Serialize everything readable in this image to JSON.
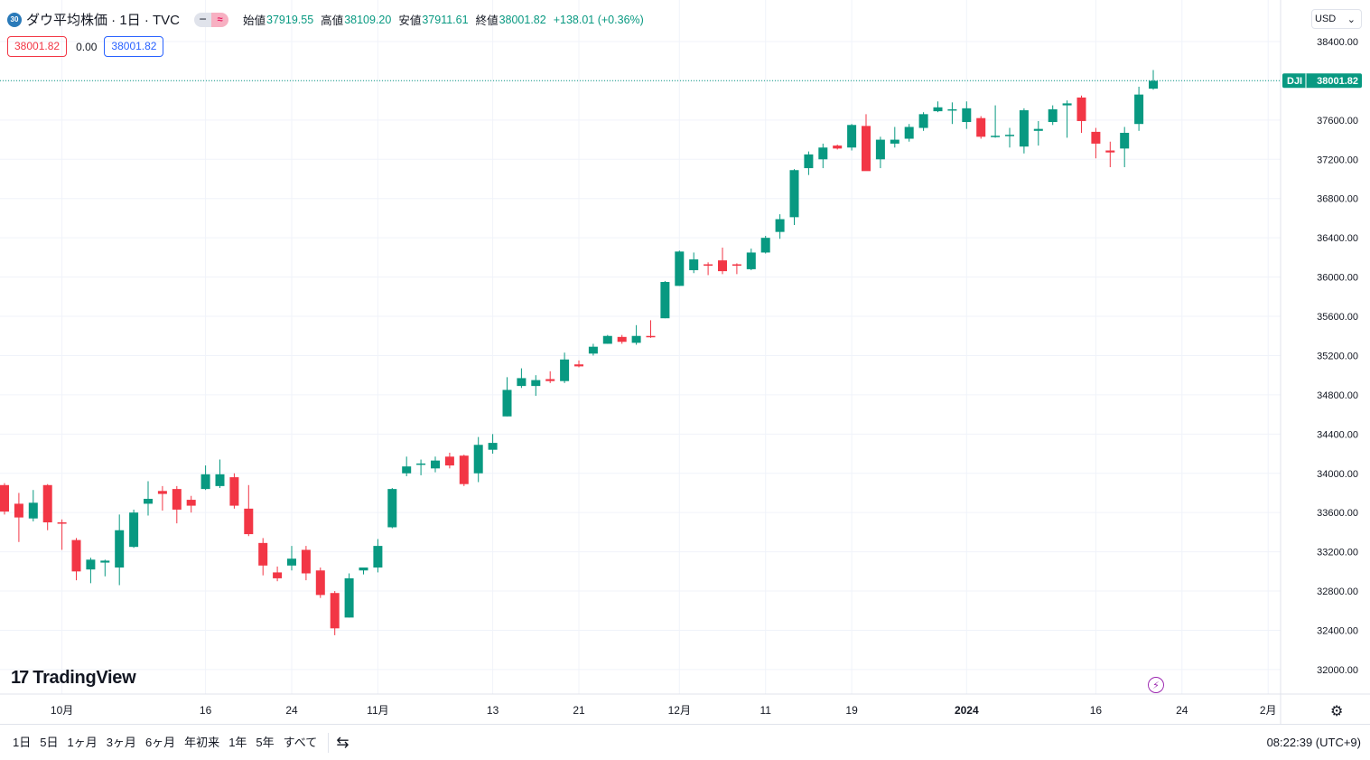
{
  "legend": {
    "badge": "30",
    "title": "ダウ平均株価 · 1日 · TVC",
    "open_label": "始値",
    "open": "37919.55",
    "high_label": "高値",
    "high": "38109.20",
    "low_label": "安値",
    "low": "37911.61",
    "close_label": "終値",
    "close": "38001.82",
    "change": "+138.01 (+0.36%)"
  },
  "order_boxes": {
    "sell": "38001.82",
    "spread": "0.00",
    "buy": "38001.82"
  },
  "currency": {
    "label": "USD",
    "chevron": "⌄"
  },
  "logo": {
    "mark": "17",
    "text": "TradingView"
  },
  "price_tag": {
    "symbol": "DJI",
    "value": "38001.82"
  },
  "colors": {
    "up": "#089981",
    "down": "#f23645",
    "grid": "#f0f3fa",
    "last_line": "#089981"
  },
  "icons": {
    "bolt": "lightning-icon",
    "gear": "settings-icon",
    "calendar": "calendar-range-icon"
  },
  "bottom_bar": {
    "ranges": [
      "1日",
      "5日",
      "1ヶ月",
      "3ヶ月",
      "6ヶ月",
      "年初来",
      "1年",
      "5年",
      "すべて"
    ],
    "clock": "08:22:39 (UTC+9)"
  },
  "chart_data": {
    "type": "candlestick",
    "title": "ダウ平均株価 · 1日 · TVC",
    "ylim": [
      31800,
      38800
    ],
    "y_ticks": [
      32000,
      32400,
      32800,
      33200,
      33600,
      34000,
      34400,
      34800,
      35200,
      35600,
      36000,
      36400,
      36800,
      37200,
      37600,
      38400
    ],
    "y_tick_labels": [
      "32000.00",
      "32400.00",
      "32800.00",
      "33200.00",
      "33600.00",
      "34000.00",
      "34400.00",
      "34800.00",
      "35200.00",
      "35600.00",
      "36000.00",
      "36400.00",
      "36800.00",
      "37200.00",
      "37600.00",
      "38400.00"
    ],
    "x_ticks": [
      {
        "label": "10月",
        "index": 4
      },
      {
        "label": "16",
        "index": 14
      },
      {
        "label": "24",
        "index": 20
      },
      {
        "label": "11月",
        "index": 26
      },
      {
        "label": "13",
        "index": 34
      },
      {
        "label": "21",
        "index": 40
      },
      {
        "label": "12月",
        "index": 47
      },
      {
        "label": "11",
        "index": 53
      },
      {
        "label": "19",
        "index": 59
      },
      {
        "label": "2024",
        "index": 67
      },
      {
        "label": "16",
        "index": 76
      },
      {
        "label": "24",
        "index": 82
      },
      {
        "label": "2月",
        "index": 88
      }
    ],
    "last_price": 38001.82,
    "candles": [
      {
        "o": 33880,
        "h": 33900,
        "l": 33580,
        "c": 33610
      },
      {
        "o": 33690,
        "h": 33800,
        "l": 33300,
        "c": 33550
      },
      {
        "o": 33540,
        "h": 33830,
        "l": 33510,
        "c": 33700
      },
      {
        "o": 33880,
        "h": 33890,
        "l": 33420,
        "c": 33500
      },
      {
        "o": 33500,
        "h": 33530,
        "l": 33220,
        "c": 33490
      },
      {
        "o": 33320,
        "h": 33340,
        "l": 32910,
        "c": 33000
      },
      {
        "o": 33020,
        "h": 33140,
        "l": 32880,
        "c": 33120
      },
      {
        "o": 33090,
        "h": 33120,
        "l": 32950,
        "c": 33110
      },
      {
        "o": 33040,
        "h": 33580,
        "l": 32860,
        "c": 33420
      },
      {
        "o": 33250,
        "h": 33630,
        "l": 33240,
        "c": 33600
      },
      {
        "o": 33690,
        "h": 33920,
        "l": 33570,
        "c": 33740
      },
      {
        "o": 33820,
        "h": 33870,
        "l": 33620,
        "c": 33790
      },
      {
        "o": 33840,
        "h": 33870,
        "l": 33490,
        "c": 33630
      },
      {
        "o": 33730,
        "h": 33770,
        "l": 33600,
        "c": 33670
      },
      {
        "o": 33840,
        "h": 34080,
        "l": 33830,
        "c": 33990
      },
      {
        "o": 33870,
        "h": 34140,
        "l": 33850,
        "c": 33990
      },
      {
        "o": 33960,
        "h": 34000,
        "l": 33640,
        "c": 33670
      },
      {
        "o": 33640,
        "h": 33880,
        "l": 33360,
        "c": 33380
      },
      {
        "o": 33290,
        "h": 33340,
        "l": 32960,
        "c": 33060
      },
      {
        "o": 32990,
        "h": 33050,
        "l": 32900,
        "c": 32930
      },
      {
        "o": 33060,
        "h": 33260,
        "l": 33010,
        "c": 33130
      },
      {
        "o": 33220,
        "h": 33260,
        "l": 32910,
        "c": 32980
      },
      {
        "o": 33010,
        "h": 33040,
        "l": 32730,
        "c": 32760
      },
      {
        "o": 32780,
        "h": 32800,
        "l": 32350,
        "c": 32420
      },
      {
        "o": 32530,
        "h": 32980,
        "l": 32530,
        "c": 32930
      },
      {
        "o": 33010,
        "h": 33040,
        "l": 32970,
        "c": 33040
      },
      {
        "o": 33040,
        "h": 33330,
        "l": 32990,
        "c": 33260
      },
      {
        "o": 33450,
        "h": 33850,
        "l": 33440,
        "c": 33840
      },
      {
        "o": 34000,
        "h": 34170,
        "l": 33970,
        "c": 34070
      },
      {
        "o": 34090,
        "h": 34140,
        "l": 33980,
        "c": 34100
      },
      {
        "o": 34050,
        "h": 34170,
        "l": 34010,
        "c": 34130
      },
      {
        "o": 34170,
        "h": 34210,
        "l": 34050,
        "c": 34080
      },
      {
        "o": 34180,
        "h": 34190,
        "l": 33870,
        "c": 33890
      },
      {
        "o": 34000,
        "h": 34370,
        "l": 33910,
        "c": 34290
      },
      {
        "o": 34240,
        "h": 34400,
        "l": 34200,
        "c": 34310
      },
      {
        "o": 34580,
        "h": 34980,
        "l": 34580,
        "c": 34850
      },
      {
        "o": 34890,
        "h": 35070,
        "l": 34870,
        "c": 34970
      },
      {
        "o": 34890,
        "h": 35000,
        "l": 34790,
        "c": 34950
      },
      {
        "o": 34960,
        "h": 35040,
        "l": 34920,
        "c": 34940
      },
      {
        "o": 34940,
        "h": 35230,
        "l": 34920,
        "c": 35160
      },
      {
        "o": 35110,
        "h": 35150,
        "l": 35080,
        "c": 35090
      },
      {
        "o": 35220,
        "h": 35320,
        "l": 35200,
        "c": 35290
      },
      {
        "o": 35320,
        "h": 35410,
        "l": 35320,
        "c": 35400
      },
      {
        "o": 35390,
        "h": 35410,
        "l": 35320,
        "c": 35340
      },
      {
        "o": 35330,
        "h": 35510,
        "l": 35310,
        "c": 35400
      },
      {
        "o": 35400,
        "h": 35560,
        "l": 35380,
        "c": 35390
      },
      {
        "o": 35580,
        "h": 35960,
        "l": 35580,
        "c": 35950
      },
      {
        "o": 35910,
        "h": 36270,
        "l": 35910,
        "c": 36260
      },
      {
        "o": 36070,
        "h": 36250,
        "l": 36040,
        "c": 36180
      },
      {
        "o": 36130,
        "h": 36150,
        "l": 36020,
        "c": 36120
      },
      {
        "o": 36170,
        "h": 36300,
        "l": 36030,
        "c": 36060
      },
      {
        "o": 36130,
        "h": 36140,
        "l": 36030,
        "c": 36120
      },
      {
        "o": 36080,
        "h": 36290,
        "l": 36070,
        "c": 36250
      },
      {
        "o": 36250,
        "h": 36420,
        "l": 36240,
        "c": 36400
      },
      {
        "o": 36460,
        "h": 36640,
        "l": 36390,
        "c": 36590
      },
      {
        "o": 36610,
        "h": 37100,
        "l": 36530,
        "c": 37090
      },
      {
        "o": 37110,
        "h": 37280,
        "l": 37040,
        "c": 37250
      },
      {
        "o": 37200,
        "h": 37360,
        "l": 37110,
        "c": 37320
      },
      {
        "o": 37340,
        "h": 37350,
        "l": 37300,
        "c": 37310
      },
      {
        "o": 37320,
        "h": 37560,
        "l": 37290,
        "c": 37550
      },
      {
        "o": 37540,
        "h": 37660,
        "l": 37100,
        "c": 37080
      },
      {
        "o": 37200,
        "h": 37430,
        "l": 37110,
        "c": 37400
      },
      {
        "o": 37360,
        "h": 37530,
        "l": 37320,
        "c": 37400
      },
      {
        "o": 37410,
        "h": 37560,
        "l": 37380,
        "c": 37530
      },
      {
        "o": 37520,
        "h": 37680,
        "l": 37490,
        "c": 37660
      },
      {
        "o": 37690,
        "h": 37790,
        "l": 37680,
        "c": 37730
      },
      {
        "o": 37700,
        "h": 37780,
        "l": 37560,
        "c": 37710
      },
      {
        "o": 37580,
        "h": 37790,
        "l": 37510,
        "c": 37720
      },
      {
        "o": 37620,
        "h": 37640,
        "l": 37410,
        "c": 37430
      },
      {
        "o": 37430,
        "h": 37750,
        "l": 37420,
        "c": 37440
      },
      {
        "o": 37440,
        "h": 37520,
        "l": 37320,
        "c": 37450
      },
      {
        "o": 37330,
        "h": 37720,
        "l": 37260,
        "c": 37700
      },
      {
        "o": 37490,
        "h": 37590,
        "l": 37340,
        "c": 37510
      },
      {
        "o": 37580,
        "h": 37750,
        "l": 37550,
        "c": 37710
      },
      {
        "o": 37750,
        "h": 37800,
        "l": 37420,
        "c": 37770
      },
      {
        "o": 37830,
        "h": 37850,
        "l": 37470,
        "c": 37590
      },
      {
        "o": 37480,
        "h": 37520,
        "l": 37210,
        "c": 37360
      },
      {
        "o": 37290,
        "h": 37380,
        "l": 37120,
        "c": 37270
      },
      {
        "o": 37310,
        "h": 37530,
        "l": 37120,
        "c": 37470
      },
      {
        "o": 37560,
        "h": 37940,
        "l": 37490,
        "c": 37860
      },
      {
        "o": 37920,
        "h": 38110,
        "l": 37910,
        "c": 38000
      }
    ]
  }
}
